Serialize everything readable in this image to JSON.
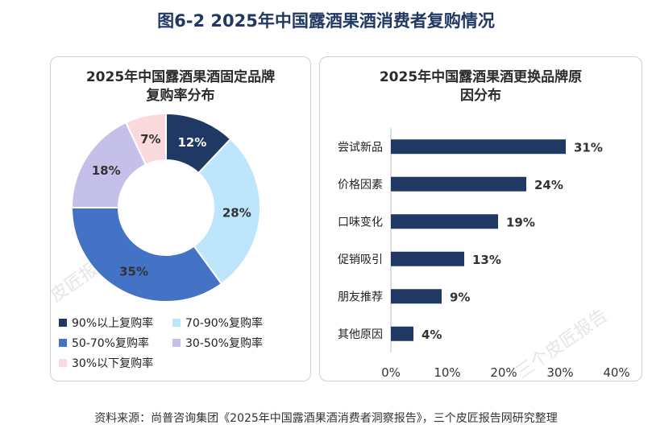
{
  "title": "图6-2 2025年中国露酒果酒消费者复购情况",
  "source": "资料来源：尚普咨询集团《2025年中国露酒果酒消费者洞察报告》，三个皮匠报告网研究整理",
  "watermark": "三个皮匠报告",
  "chart_data": [
    {
      "type": "pie",
      "title": "2025年中国露酒果酒固定品牌复购率分布",
      "title_lines": [
        "2025年中国露酒果酒固定品牌",
        "复购率分布"
      ],
      "categories": [
        "90%以上复购率",
        "70-90%复购率",
        "50-70%复购率",
        "30-50%复购率",
        "30%以下复购率"
      ],
      "values": [
        12,
        28,
        35,
        18,
        7
      ],
      "labels": [
        "12%",
        "28%",
        "35%",
        "18%",
        "7%"
      ],
      "colors": [
        "#1f3864",
        "#bde5fb",
        "#4472c4",
        "#c5c0ea",
        "#fadadd"
      ],
      "legend_position": "bottom"
    },
    {
      "type": "bar",
      "orientation": "horizontal",
      "title": "2025年中国露酒果酒更换品牌原因分布",
      "title_lines": [
        "2025年中国露酒果酒更换品牌原",
        "因分布"
      ],
      "categories": [
        "尝试新品",
        "价格因素",
        "口味变化",
        "促销吸引",
        "朋友推荐",
        "其他原因"
      ],
      "values": [
        31,
        24,
        19,
        13,
        9,
        4
      ],
      "labels": [
        "31%",
        "24%",
        "19%",
        "13%",
        "9%",
        "4%"
      ],
      "xlim": [
        0,
        40
      ],
      "xticks": [
        "0%",
        "10%",
        "20%",
        "30%",
        "40%"
      ],
      "color": "#1f3864"
    }
  ]
}
